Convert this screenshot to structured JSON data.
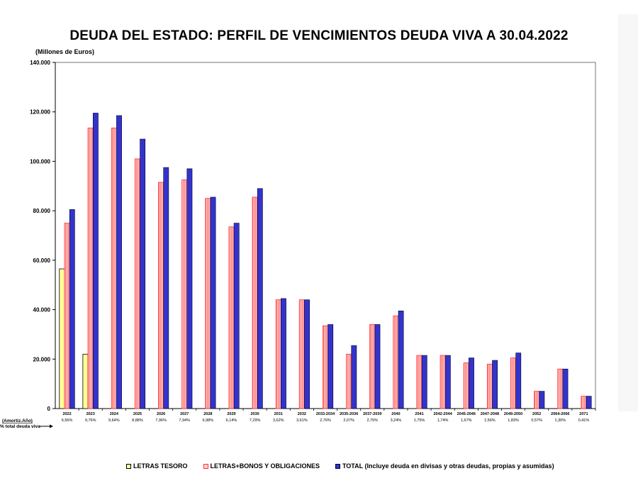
{
  "chart_data": {
    "type": "bar",
    "title": "DEUDA DEL ESTADO: PERFIL DE VENCIMIENTOS DEUDA VIVA A 30.04.2022",
    "ylabel": "(Millones  de Euros)",
    "xlabel": "",
    "ylim": [
      0,
      140000
    ],
    "y_ticks": [
      0,
      20000,
      40000,
      60000,
      80000,
      100000,
      120000,
      140000
    ],
    "y_tick_labels": [
      "0",
      "20.000",
      "40.000",
      "60.000",
      "80.000",
      "100.000",
      "120.000",
      "140.000"
    ],
    "grid": false,
    "categories": [
      "2022",
      "2023",
      "2024",
      "2025",
      "2026",
      "2027",
      "2028",
      "2029",
      "2030",
      "2031",
      "2032",
      "2033-2034",
      "2035-2036",
      "2037-2039",
      "2040",
      "2041",
      "2042-2044",
      "2045-2046",
      "2047-2048",
      "2049-2050",
      "2052",
      "2064-2066",
      "2071"
    ],
    "pct_total": [
      "6,56%",
      "9,76%",
      "9,64%",
      "8,88%",
      "7,96%",
      "7,94%",
      "6,98%",
      "6,14%",
      "7,29%",
      "3,62%",
      "3,61%",
      "2,76%",
      "2,07%",
      "2,75%",
      "3,24%",
      "1,75%",
      "1,74%",
      "1,67%",
      "1,56%",
      "1,83%",
      "0,57%",
      "1,30%",
      "0,41%"
    ],
    "row_label_line1": "(Amortiz.Año)",
    "row_label_line2": "% total deuda viva",
    "series": [
      {
        "name": "LETRAS TESORO",
        "color": "#ffff99",
        "pattern": "plain",
        "values": [
          56500,
          22000,
          0,
          0,
          0,
          0,
          0,
          0,
          0,
          0,
          0,
          0,
          0,
          0,
          0,
          0,
          0,
          0,
          0,
          0,
          0,
          0,
          0
        ]
      },
      {
        "name": "LETRAS+BONOS Y OBLIGACIONES",
        "color": "#ff8080",
        "pattern": "striped",
        "values": [
          75000,
          113500,
          113500,
          101000,
          91500,
          92500,
          85000,
          73500,
          85500,
          44000,
          44000,
          33500,
          22000,
          34000,
          37500,
          21500,
          21500,
          18500,
          18000,
          20500,
          7000,
          16000,
          5000
        ]
      },
      {
        "name": "TOTAL (Incluye deuda en divisas y otras deudas, propias y asumidas)",
        "color": "#3333cc",
        "pattern": "solid",
        "values": [
          80500,
          119500,
          118500,
          109000,
          97500,
          97000,
          85500,
          75000,
          89000,
          44500,
          44000,
          34000,
          25500,
          34000,
          39500,
          21500,
          21500,
          20500,
          19500,
          22500,
          7000,
          16000,
          5000
        ]
      }
    ]
  }
}
